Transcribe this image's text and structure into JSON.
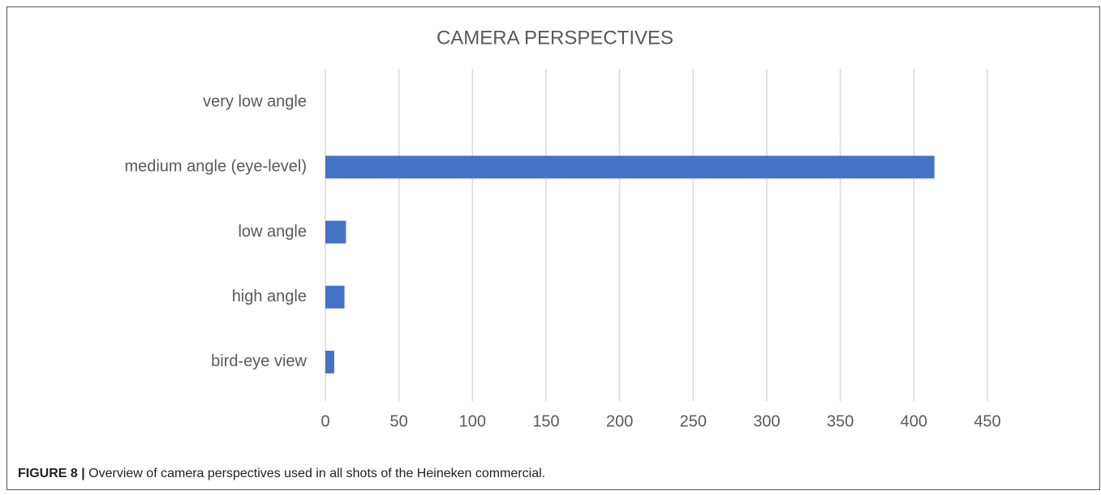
{
  "chart_data": {
    "type": "hbar",
    "title": "CAMERA PERSPECTIVES",
    "categories": [
      "very low angle",
      "medium angle (eye-level)",
      "low angle",
      "high angle",
      "bird-eye view"
    ],
    "values": [
      0,
      414,
      14,
      13,
      6
    ],
    "color": "#4472c4",
    "xlim": [
      0,
      450
    ],
    "xticks": [
      0,
      50,
      100,
      150,
      200,
      250,
      300,
      350,
      400,
      450
    ],
    "grid": true
  },
  "caption": {
    "label": "FIGURE 8 |",
    "text": "Overview of camera perspectives used in all shots of the Heineken commercial."
  }
}
